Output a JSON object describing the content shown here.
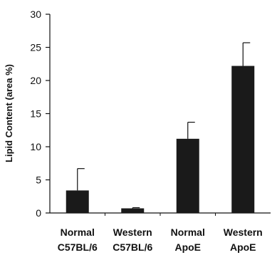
{
  "chart_data": {
    "type": "bar",
    "title": "",
    "xlabel": "",
    "ylabel": "Lipid Content (area %)",
    "ylim": [
      0,
      30
    ],
    "yticks": [
      0,
      5,
      10,
      15,
      20,
      25,
      30
    ],
    "grid": false,
    "legend": "none",
    "categories": [
      {
        "line1": "Normal",
        "line2": "C57BL/6"
      },
      {
        "line1": "Western",
        "line2": "C57BL/6"
      },
      {
        "line1": "Normal",
        "line2": "ApoE"
      },
      {
        "line1": "Western",
        "line2": "ApoE"
      }
    ],
    "series": [
      {
        "values": [
          3.4,
          0.7,
          11.2,
          22.2
        ],
        "errors": [
          3.3,
          0.1,
          2.5,
          3.5
        ]
      }
    ],
    "bar_color": "#1a1a1a",
    "axis_color": "#111111"
  }
}
